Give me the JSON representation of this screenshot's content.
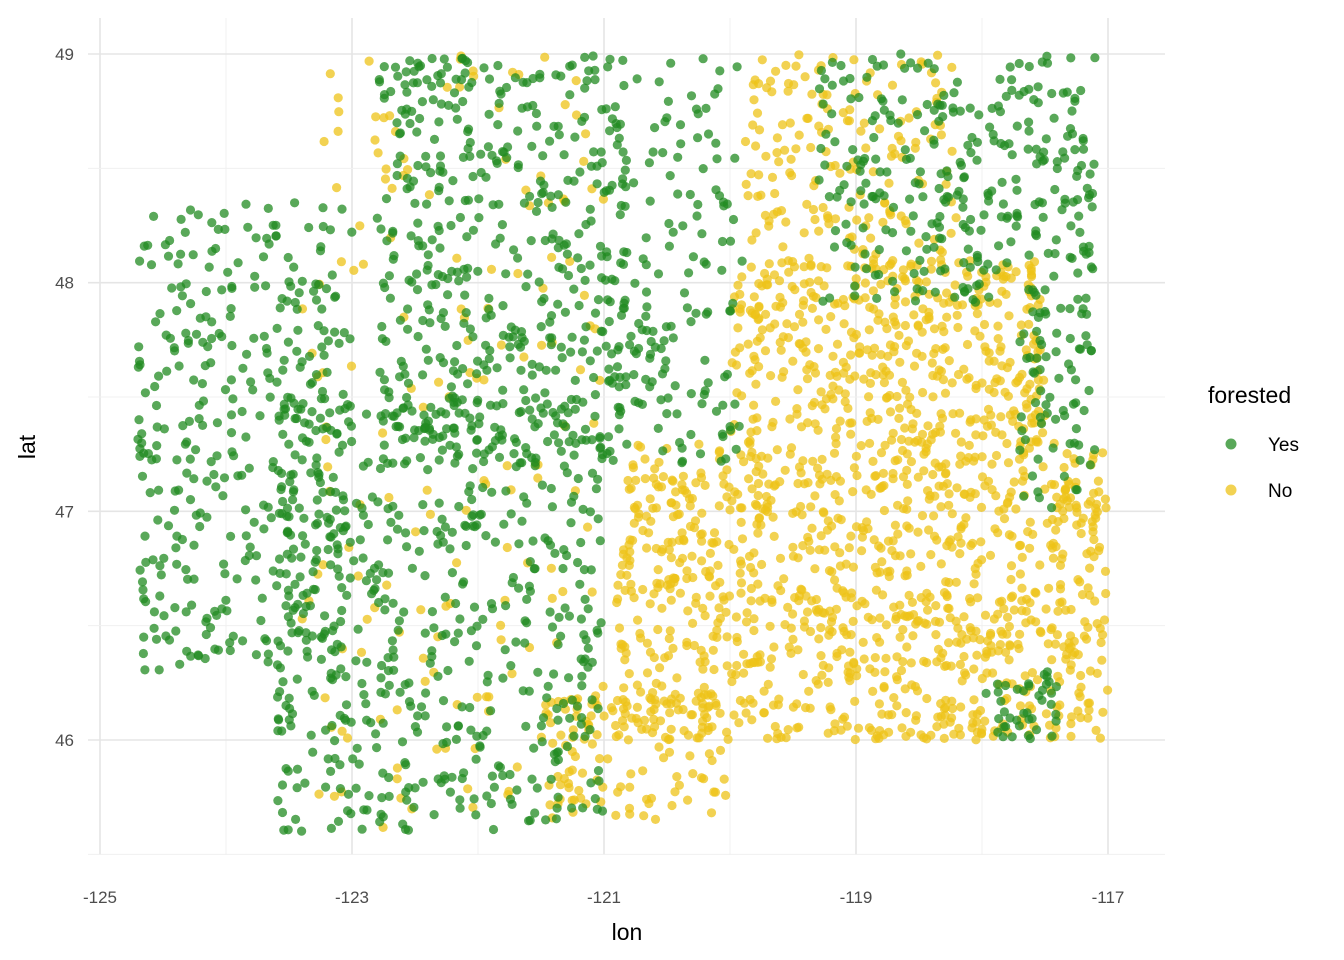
{
  "chart_data": {
    "type": "scatter",
    "xlabel": "lon",
    "ylabel": "lat",
    "xlim": [
      -125.05,
      -116.45
    ],
    "ylim": [
      45.45,
      49.1
    ],
    "x_ticks": [
      -125,
      -123,
      -121,
      -119,
      -117
    ],
    "x_tick_labels": [
      "-125",
      "-123",
      "-121",
      "-119",
      "-117"
    ],
    "y_ticks": [
      46,
      47,
      48,
      49
    ],
    "y_tick_labels": [
      "46",
      "47",
      "48",
      "49"
    ],
    "grid": true,
    "legend": {
      "title": "forested",
      "position": "right",
      "entries": [
        {
          "label": "Yes",
          "color": "#228B22"
        },
        {
          "label": "No",
          "color": "#EEC318"
        }
      ]
    },
    "point_alpha": 0.75,
    "series": [
      {
        "name": "Yes",
        "color": "#228B22",
        "regions": [
          {
            "lon": [
              -124.7,
              -123.0
            ],
            "lat": [
              46.3,
              48.35
            ]
          },
          {
            "lon": [
              -123.6,
              -121.0
            ],
            "lat": [
              45.6,
              47.5
            ]
          },
          {
            "lon": [
              -122.8,
              -120.8
            ],
            "lat": [
              47.2,
              49.0
            ]
          },
          {
            "lon": [
              -120.9,
              -119.9
            ],
            "lat": [
              47.2,
              49.0
            ]
          },
          {
            "lon": [
              -119.3,
              -117.1
            ],
            "lat": [
              47.9,
              49.0
            ]
          },
          {
            "lon": [
              -117.7,
              -117.1
            ],
            "lat": [
              47.0,
              47.9
            ]
          },
          {
            "lon": [
              -118.0,
              -117.4
            ],
            "lat": [
              46.0,
              46.3
            ]
          }
        ]
      },
      {
        "name": "No",
        "color": "#EEC318",
        "regions": [
          {
            "lon": [
              -120.9,
              -117.0
            ],
            "lat": [
              46.0,
              47.3
            ]
          },
          {
            "lon": [
              -120.0,
              -117.5
            ],
            "lat": [
              47.3,
              48.1
            ]
          },
          {
            "lon": [
              -121.5,
              -120.0
            ],
            "lat": [
              45.65,
              46.2
            ]
          },
          {
            "lon": [
              -123.4,
              -121.0
            ],
            "lat": [
              45.6,
              49.0
            ]
          },
          {
            "lon": [
              -119.9,
              -118.2
            ],
            "lat": [
              48.1,
              49.0
            ]
          }
        ]
      }
    ]
  }
}
